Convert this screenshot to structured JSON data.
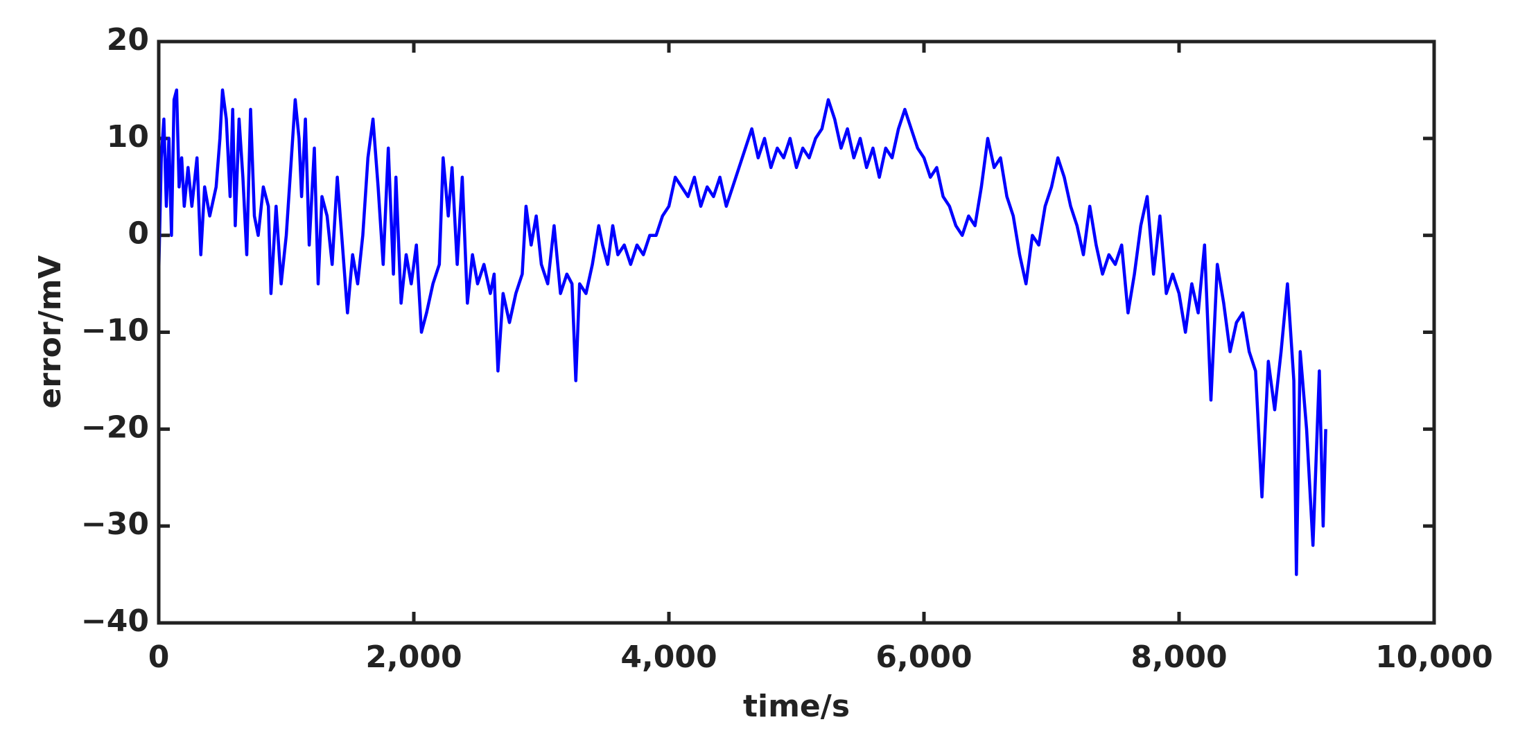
{
  "chart_data": {
    "type": "line",
    "x_label": "time/s",
    "y_label": "error/mV",
    "xlim": [
      0,
      10000
    ],
    "xticks": [
      0,
      {
        "value": 2000,
        "label": "2,000"
      },
      {
        "value": 4000,
        "label": "4,000"
      },
      {
        "value": 6000,
        "label": "6,000"
      },
      {
        "value": 8000,
        "label": "8,000"
      },
      {
        "value": 10000,
        "label": "10,000"
      }
    ],
    "ylim": [
      -40,
      20
    ],
    "yticks": [
      {
        "value": -40,
        "label": "−40"
      },
      {
        "value": -30,
        "label": "−30"
      },
      {
        "value": -20,
        "label": "−20"
      },
      {
        "value": -10,
        "label": "−10"
      },
      0,
      10,
      20
    ],
    "grid": false,
    "x": [
      0,
      20,
      40,
      60,
      80,
      100,
      120,
      140,
      160,
      180,
      200,
      230,
      260,
      300,
      330,
      360,
      400,
      450,
      480,
      500,
      530,
      560,
      580,
      600,
      630,
      660,
      690,
      720,
      750,
      780,
      820,
      860,
      880,
      920,
      960,
      1000,
      1040,
      1070,
      1100,
      1120,
      1150,
      1180,
      1220,
      1250,
      1280,
      1320,
      1360,
      1400,
      1440,
      1480,
      1520,
      1560,
      1600,
      1640,
      1680,
      1720,
      1760,
      1800,
      1840,
      1860,
      1900,
      1940,
      1980,
      2020,
      2060,
      2100,
      2150,
      2200,
      2230,
      2270,
      2300,
      2340,
      2380,
      2420,
      2460,
      2500,
      2550,
      2600,
      2630,
      2660,
      2700,
      2750,
      2800,
      2850,
      2880,
      2920,
      2960,
      3000,
      3050,
      3100,
      3150,
      3200,
      3240,
      3270,
      3300,
      3350,
      3400,
      3450,
      3480,
      3520,
      3560,
      3600,
      3650,
      3700,
      3750,
      3800,
      3850,
      3900,
      3950,
      4000,
      4050,
      4100,
      4150,
      4200,
      4250,
      4300,
      4350,
      4400,
      4450,
      4500,
      4550,
      4600,
      4650,
      4700,
      4750,
      4800,
      4850,
      4900,
      4950,
      5000,
      5050,
      5100,
      5150,
      5200,
      5250,
      5300,
      5350,
      5400,
      5450,
      5500,
      5550,
      5600,
      5650,
      5700,
      5750,
      5800,
      5850,
      5900,
      5950,
      6000,
      6050,
      6100,
      6150,
      6200,
      6250,
      6300,
      6350,
      6400,
      6450,
      6500,
      6550,
      6600,
      6650,
      6700,
      6750,
      6800,
      6850,
      6900,
      6950,
      7000,
      7050,
      7100,
      7150,
      7200,
      7250,
      7300,
      7350,
      7400,
      7450,
      7500,
      7550,
      7600,
      7650,
      7700,
      7750,
      7800,
      7850,
      7900,
      7950,
      8000,
      8050,
      8100,
      8150,
      8200,
      8250,
      8300,
      8350,
      8400,
      8450,
      8500,
      8550,
      8600,
      8650,
      8700,
      8750,
      8800,
      8850,
      8900,
      8920,
      8950,
      9000,
      9050,
      9100,
      9130,
      9150
    ],
    "series": [
      {
        "color": "#0000ff",
        "values": [
          -4,
          8,
          12,
          3,
          10,
          0,
          14,
          15,
          5,
          8,
          3,
          7,
          3,
          8,
          -2,
          5,
          2,
          5,
          10,
          15,
          12,
          4,
          13,
          1,
          12,
          6,
          -2,
          13,
          2,
          0,
          5,
          3,
          -6,
          3,
          -5,
          0,
          8,
          14,
          10,
          4,
          12,
          -1,
          9,
          -5,
          4,
          2,
          -3,
          6,
          -1,
          -8,
          -2,
          -5,
          0,
          8,
          12,
          5,
          -3,
          9,
          -4,
          6,
          -7,
          -2,
          -5,
          -1,
          -10,
          -8,
          -5,
          -3,
          8,
          2,
          7,
          -3,
          6,
          -7,
          -2,
          -5,
          -3,
          -6,
          -4,
          -14,
          -6,
          -9,
          -6,
          -4,
          3,
          -1,
          2,
          -3,
          -5,
          1,
          -6,
          -4,
          -5,
          -15,
          -5,
          -6,
          -3,
          1,
          -1,
          -3,
          1,
          -2,
          -1,
          -3,
          -1,
          -2,
          0,
          0,
          2,
          3,
          6,
          5,
          4,
          6,
          3,
          5,
          4,
          6,
          3,
          5,
          7,
          9,
          11,
          8,
          10,
          7,
          9,
          8,
          10,
          7,
          9,
          8,
          10,
          11,
          14,
          12,
          9,
          11,
          8,
          10,
          7,
          9,
          6,
          9,
          8,
          11,
          13,
          11,
          9,
          8,
          6,
          7,
          4,
          3,
          1,
          0,
          2,
          1,
          5,
          10,
          7,
          8,
          4,
          2,
          -2,
          -5,
          0,
          -1,
          3,
          5,
          8,
          6,
          3,
          1,
          -2,
          3,
          -1,
          -4,
          -2,
          -3,
          -1,
          -8,
          -4,
          1,
          4,
          -4,
          2,
          -6,
          -4,
          -6,
          -10,
          -5,
          -8,
          -1,
          -17,
          -3,
          -7,
          -12,
          -9,
          -8,
          -12,
          -14,
          -27,
          -13,
          -18,
          -12,
          -5,
          -15,
          -35,
          -12,
          -20,
          -32,
          -14,
          -30,
          -20
        ]
      }
    ]
  }
}
